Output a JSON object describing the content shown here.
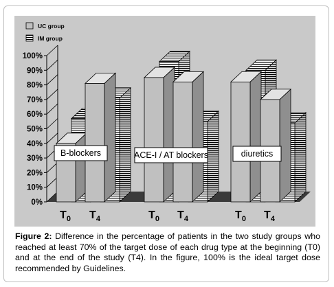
{
  "chart_data": {
    "type": "bar",
    "categories": [
      "T0",
      "T4",
      "T0",
      "T4",
      "T0",
      "T4"
    ],
    "groups": [
      {
        "label": "B-blockers",
        "tick_labels": [
          "T0",
          "T4"
        ]
      },
      {
        "label": "ACE-I / AT blockers",
        "tick_labels": [
          "T0",
          "T4"
        ]
      },
      {
        "label": "diuretics",
        "tick_labels": [
          "T0",
          "T4"
        ]
      }
    ],
    "series": [
      {
        "name": "UC group",
        "values": [
          40,
          81,
          85,
          82,
          82,
          70
        ],
        "color": "#c0c0c0"
      },
      {
        "name": "IM group",
        "values": [
          57,
          71,
          96,
          55,
          90,
          54
        ],
        "color": "#ffffff",
        "pattern": "horizontal-stripes"
      }
    ],
    "ylim": [
      0,
      100
    ],
    "yticks": [
      "0%",
      "10%",
      "20%",
      "30%",
      "40%",
      "50%",
      "60%",
      "70%",
      "80%",
      "90%",
      "100%"
    ],
    "legend_position": "top-left",
    "grid": false,
    "three_d": true
  },
  "caption": {
    "label": "Figure 2:",
    "text": "Difference in the percentage of patients in the two study groups who reached at least 70% of the target dose of each drug type at the beginning (T0) and at the end of the study (T4). In the figure, 100% is the ideal target dose recommended by Guidelines."
  }
}
